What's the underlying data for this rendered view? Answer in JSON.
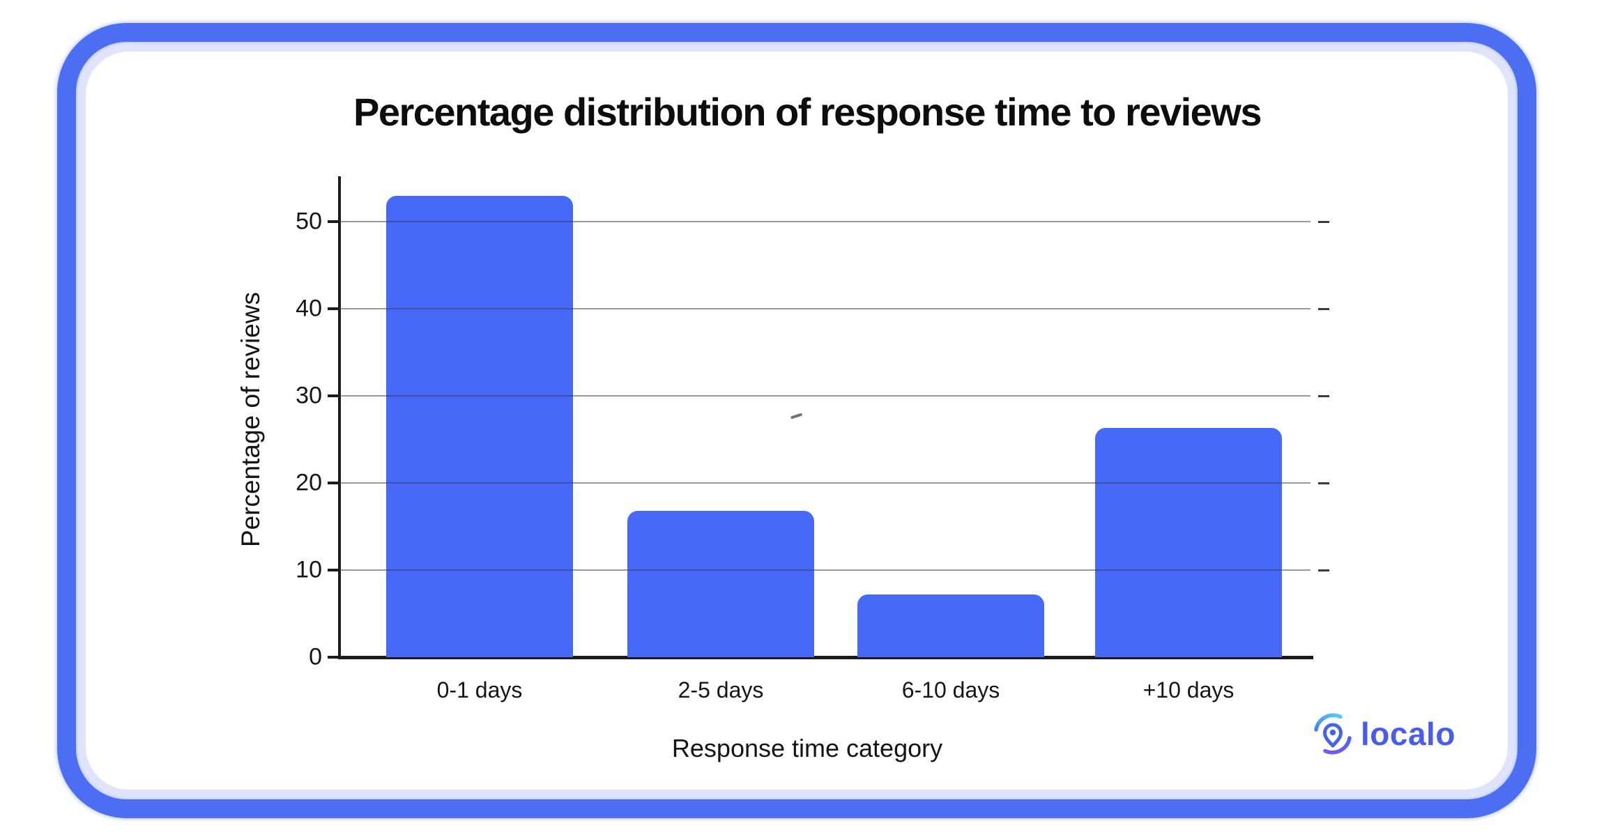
{
  "chart_data": {
    "type": "bar",
    "title": "Percentage distribution of response time to reviews",
    "categories": [
      "0-1 days",
      "2-5 days",
      "6-10 days",
      "+10 days"
    ],
    "values": [
      52.9,
      16.8,
      7.2,
      26.3
    ],
    "xlabel": "Response time category",
    "ylabel": "Percentage of reviews",
    "ylim": [
      0,
      55
    ],
    "yticks": [
      0,
      10,
      20,
      30,
      40,
      50
    ],
    "grid": true,
    "legend": "none",
    "bar_color": "#4669f7"
  },
  "branding": {
    "logo_text": "localo",
    "logo_color": "#4a5cec",
    "pin_color": "#4365ee",
    "arc_top_colors": [
      "#4b7ff2",
      "#55ccf5"
    ],
    "arc_bottom_colors": [
      "#4b63f0",
      "#7a57f3"
    ]
  },
  "colors": {
    "frame_border": "#4b6ef3",
    "frame_inner_ring": "#dfe4fb",
    "card_background": "#ffffff",
    "axis": "#1b1b1b",
    "gridline": "rgba(55,58,74,0.52)",
    "text": "#141414"
  }
}
